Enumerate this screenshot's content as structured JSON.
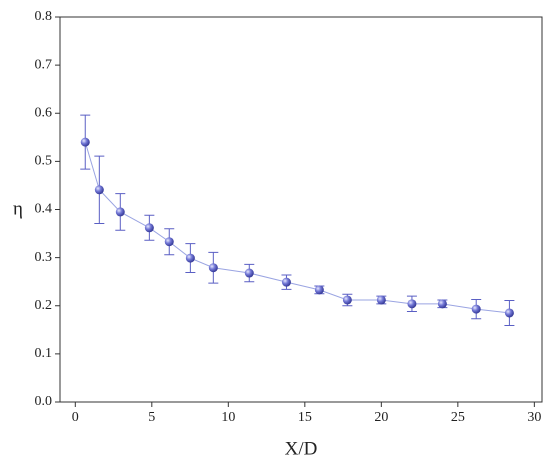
{
  "chart_data": {
    "type": "line",
    "xlabel": "X/D",
    "ylabel": "η",
    "x": [
      0.65,
      1.57,
      2.94,
      4.84,
      6.14,
      7.52,
      9.02,
      11.37,
      13.8,
      15.95,
      17.78,
      20.0,
      22.0,
      23.99,
      26.2,
      28.37
    ],
    "series": [
      {
        "color": "#5a5fc4",
        "line_color": "#9aa4e2",
        "values": [
          0.54,
          0.441,
          0.395,
          0.362,
          0.333,
          0.299,
          0.279,
          0.268,
          0.249,
          0.233,
          0.212,
          0.212,
          0.204,
          0.204,
          0.193,
          0.185
        ],
        "errors": [
          0.056,
          0.07,
          0.038,
          0.026,
          0.027,
          0.03,
          0.032,
          0.018,
          0.015,
          0.008,
          0.012,
          0.008,
          0.016,
          0.008,
          0.02,
          0.026
        ]
      }
    ],
    "xlim": [
      -1,
      30.5
    ],
    "ylim": [
      0,
      0.8
    ],
    "xticks": [
      0,
      5,
      10,
      15,
      20,
      25,
      30
    ],
    "yticks": [
      {
        "value": 0,
        "label": "0.0"
      },
      0.1,
      0.2,
      0.3,
      0.4,
      0.5,
      0.6,
      0.7,
      {
        "value": 0.8,
        "label": "0.8"
      }
    ]
  }
}
